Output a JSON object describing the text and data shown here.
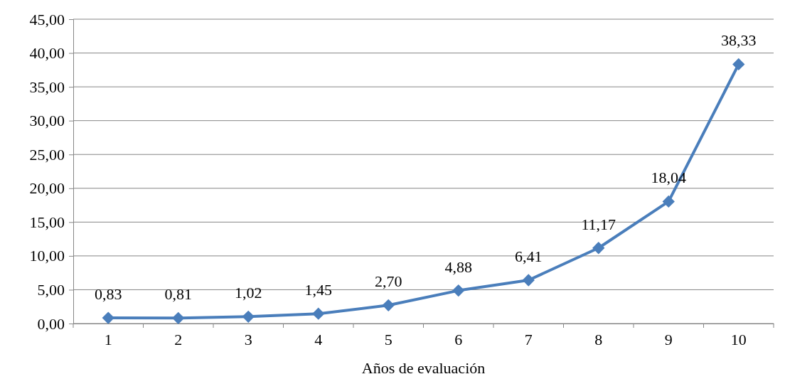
{
  "chart_data": {
    "type": "line",
    "xlabel": "Años de evaluación",
    "categories": [
      "1",
      "2",
      "3",
      "4",
      "5",
      "6",
      "7",
      "8",
      "9",
      "10"
    ],
    "series": [
      {
        "color": "#4a7ebb",
        "values": [
          0.83,
          0.81,
          1.02,
          1.45,
          2.7,
          4.88,
          6.41,
          11.17,
          18.04,
          38.33
        ],
        "value_labels": [
          "0,83",
          "0,81",
          "1,02",
          "1,45",
          "2,70",
          "4,88",
          "6,41",
          "11,17",
          "18,04",
          "38,33"
        ]
      }
    ],
    "ylim": [
      0,
      45
    ],
    "yticks": [
      {
        "value": 0,
        "label": "0,00"
      },
      {
        "value": 5,
        "label": "5,00"
      },
      {
        "value": 10,
        "label": "10,00"
      },
      {
        "value": 15,
        "label": "15,00"
      },
      {
        "value": 20,
        "label": "20,00"
      },
      {
        "value": 25,
        "label": "25,00"
      },
      {
        "value": 30,
        "label": "30,00"
      },
      {
        "value": 35,
        "label": "35,00"
      },
      {
        "value": 40,
        "label": "40,00"
      },
      {
        "value": 45,
        "label": "45,00"
      }
    ],
    "grid": "y",
    "marker": "diamond",
    "line_style": "solid"
  }
}
